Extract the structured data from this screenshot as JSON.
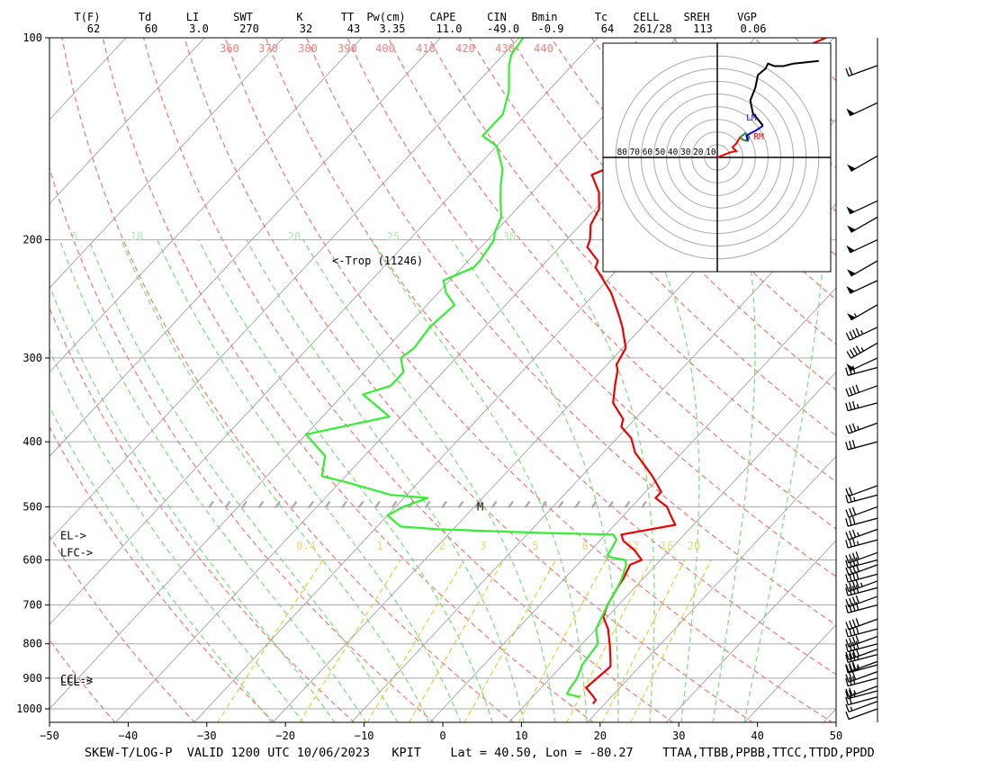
{
  "header": {
    "columns": [
      {
        "label": "T(F)",
        "value": "62"
      },
      {
        "label": "Td",
        "value": "60"
      },
      {
        "label": "LI",
        "value": "3.0"
      },
      {
        "label": "SWT",
        "value": "270"
      },
      {
        "label": "K",
        "value": "32"
      },
      {
        "label": "TT",
        "value": "43"
      },
      {
        "label": "Pw(cm)",
        "value": "3.35"
      },
      {
        "label": "CAPE",
        "value": "11.0"
      },
      {
        "label": "CIN",
        "value": "-49.0"
      },
      {
        "label": "Bmin",
        "value": "-0.9"
      },
      {
        "label": "Tc",
        "value": "64"
      },
      {
        "label": "CELL",
        "value": "261/28"
      },
      {
        "label": "SREH",
        "value": "113"
      },
      {
        "label": "VGP",
        "value": "0.06"
      }
    ]
  },
  "footer": {
    "text": "SKEW-T/LOG-P  VALID 1200 UTC 10/06/2023   KPIT    Lat = 40.50, Lon = -80.27    TTAA,TTBB,PPBB,TTCC,TTDD,PPDD"
  },
  "colors": {
    "temperature": "#ee0000",
    "dewpoint": "#33ee33",
    "isotherm": "#999999",
    "dry_adiabat": "#f08080",
    "moist_adiabat": "#80e080",
    "mixing_ratio": "#e6d24a",
    "hodograph": "#000000",
    "storm_motion_lm": "#0000ff",
    "storm_motion_rm": "#ee0000",
    "parcel": "#c8a078",
    "el_hatch": "#aaaaaa"
  },
  "chart_data": {
    "type": "line",
    "xlabel": "",
    "ylabel": "",
    "xlim": [
      -50,
      50
    ],
    "ylim": [
      1050,
      100
    ],
    "y_scale": "log",
    "x_ticks": [
      "−50",
      "−40",
      "−30",
      "−20",
      "−10",
      "0",
      "10",
      "20",
      "30",
      "40",
      "50"
    ],
    "y_ticks": [
      "100",
      "200",
      "300",
      "400",
      "500",
      "600",
      "700",
      "800",
      "900",
      "1000"
    ],
    "isobars": [
      100,
      200,
      300,
      400,
      500,
      600,
      700,
      800,
      900,
      1000
    ],
    "dry_adiabat_labels": [
      "360",
      "370",
      "380",
      "390",
      "400",
      "410",
      "420",
      "430",
      "440"
    ],
    "moist_adiabat_labels": [
      "5",
      "10",
      "20",
      "25",
      "30"
    ],
    "mixing_ratio_labels": [
      "0.4",
      "1",
      "2",
      "3",
      "5",
      "8",
      "12",
      "16",
      "20"
    ],
    "series": [
      {
        "key": "temperature",
        "points": [
          [
            18.5,
            983
          ],
          [
            18.4,
            970
          ],
          [
            17.1,
            950
          ],
          [
            15.7,
            930
          ],
          [
            16.3,
            865
          ],
          [
            15.7,
            850
          ],
          [
            13.5,
            800
          ],
          [
            11.5,
            760
          ],
          [
            9.5,
            730
          ],
          [
            8.6,
            700
          ],
          [
            7.8,
            660
          ],
          [
            7.5,
            640
          ],
          [
            6.7,
            610
          ],
          [
            7.6,
            600
          ],
          [
            5.5,
            580
          ],
          [
            3.0,
            562
          ],
          [
            2.0,
            550
          ],
          [
            7.7,
            532
          ],
          [
            6.0,
            515
          ],
          [
            4.5,
            500
          ],
          [
            2.0,
            485
          ],
          [
            2.0,
            475
          ],
          [
            -1.0,
            450
          ],
          [
            -6.0,
            415
          ],
          [
            -8.2,
            395
          ],
          [
            -10.8,
            380
          ],
          [
            -11.5,
            370
          ],
          [
            -14.7,
            350
          ],
          [
            -16.5,
            330
          ],
          [
            -18.0,
            313
          ],
          [
            -18.8,
            307
          ],
          [
            -19.6,
            290
          ],
          [
            -22.5,
            270
          ],
          [
            -24.2,
            260
          ],
          [
            -28.0,
            240
          ],
          [
            -33.0,
            220
          ],
          [
            -33.5,
            215
          ],
          [
            -36.5,
            205
          ],
          [
            -37.0,
            200
          ],
          [
            -38.7,
            190
          ],
          [
            -39.5,
            180
          ],
          [
            -41.5,
            170
          ],
          [
            -44.5,
            160
          ],
          [
            -41.0,
            150
          ],
          [
            -37.0,
            140
          ],
          [
            -36.0,
            132
          ],
          [
            -36.0,
            127
          ],
          [
            -34.0,
            120
          ],
          [
            -34.0,
            110
          ],
          [
            -34.0,
            106
          ],
          [
            -31.0,
            100
          ]
        ]
      },
      {
        "key": "dewpoint",
        "points": [
          [
            16.0,
            960
          ],
          [
            14.0,
            950
          ],
          [
            13.7,
            930
          ],
          [
            13.5,
            905
          ],
          [
            13.0,
            880
          ],
          [
            12.5,
            860
          ],
          [
            12.0,
            800
          ],
          [
            10.0,
            760
          ],
          [
            8.6,
            700
          ],
          [
            7.8,
            660
          ],
          [
            7.3,
            640
          ],
          [
            6.2,
            610
          ],
          [
            5.5,
            600
          ],
          [
            3.5,
            595
          ],
          [
            2.7,
            591
          ],
          [
            2.5,
            580
          ],
          [
            2.0,
            560
          ],
          [
            1.0,
            550
          ],
          [
            -8.0,
            547
          ],
          [
            -22.0,
            540
          ],
          [
            -27.0,
            535
          ],
          [
            -30.0,
            515
          ],
          [
            -29.0,
            500
          ],
          [
            -27.0,
            485
          ],
          [
            -32.0,
            480
          ],
          [
            -39.0,
            460
          ],
          [
            -43.0,
            450
          ],
          [
            -45.0,
            420
          ],
          [
            -50.0,
            390
          ],
          [
            -41.5,
            367
          ],
          [
            -43.0,
            360
          ],
          [
            -47.5,
            340
          ],
          [
            -45.0,
            330
          ],
          [
            -45.0,
            315
          ],
          [
            -47.0,
            300
          ],
          [
            -46.5,
            290
          ],
          [
            -47.0,
            270
          ],
          [
            -46.5,
            250
          ],
          [
            -49.0,
            240
          ],
          [
            -50.8,
            230
          ],
          [
            -48.5,
            220
          ],
          [
            -48.5,
            215
          ],
          [
            -49.2,
            200
          ],
          [
            -50.0,
            195
          ],
          [
            -51.0,
            185
          ],
          [
            -53.0,
            175
          ],
          [
            -55.0,
            165
          ],
          [
            -56.5,
            157
          ],
          [
            -60.0,
            145
          ],
          [
            -63.0,
            140
          ],
          [
            -63.0,
            130
          ],
          [
            -65.0,
            120
          ],
          [
            -68.0,
            110
          ],
          [
            -69.0,
            106
          ],
          [
            -69.5,
            100
          ]
        ]
      }
    ],
    "annotations": [
      {
        "key": "tropopause",
        "text": "<-Trop (11246)",
        "pressure": 215
      },
      {
        "key": "el",
        "text": "EL->",
        "pressure": 552
      },
      {
        "key": "lfc",
        "text": "LFC->",
        "pressure": 585
      },
      {
        "key": "ccl",
        "text": "CCL->",
        "pressure": 903
      },
      {
        "key": "lcl",
        "text": "LCL->",
        "pressure": 912
      },
      {
        "key": "mpoint",
        "text": "M",
        "pressure": 510,
        "temperature": -6.0
      }
    ],
    "hodograph": {
      "ring_labels": [
        "80",
        "70",
        "60",
        "50",
        "40",
        "30",
        "20",
        "10"
      ],
      "ring_step_kt": 10,
      "lm_label": "LM",
      "rm_label": "RM",
      "trace_red": [
        [
          0,
          0
        ],
        [
          10,
          4
        ],
        [
          15,
          5
        ],
        [
          12,
          8
        ],
        [
          15,
          11
        ],
        [
          18,
          16
        ]
      ],
      "trace_green": [
        [
          18,
          16
        ],
        [
          22,
          19
        ],
        [
          25,
          16
        ],
        [
          24,
          13
        ],
        [
          20,
          14
        ],
        [
          18,
          16
        ]
      ],
      "trace_blue": [
        [
          24,
          13
        ],
        [
          23,
          17
        ],
        [
          26,
          19
        ],
        [
          30,
          21
        ],
        [
          36,
          25
        ]
      ],
      "trace_black": [
        [
          36,
          25
        ],
        [
          28,
          35
        ],
        [
          26,
          45
        ],
        [
          30,
          55
        ],
        [
          32,
          65
        ],
        [
          38,
          70
        ],
        [
          40,
          74
        ],
        [
          45,
          72
        ],
        [
          52,
          72
        ],
        [
          60,
          74
        ],
        [
          70,
          75
        ],
        [
          80,
          76
        ]
      ],
      "lm": [
        20,
        25
      ],
      "rm": [
        30,
        10
      ]
    },
    "wind_barbs": [
      {
        "p": 1000,
        "speed_kt": 10,
        "dir": 250
      },
      {
        "p": 975,
        "speed_kt": 15,
        "dir": 250
      },
      {
        "p": 960,
        "speed_kt": 20,
        "dir": 255
      },
      {
        "p": 940,
        "speed_kt": 25,
        "dir": 255
      },
      {
        "p": 925,
        "speed_kt": 25,
        "dir": 250
      },
      {
        "p": 900,
        "speed_kt": 30,
        "dir": 255
      },
      {
        "p": 880,
        "speed_kt": 30,
        "dir": 250
      },
      {
        "p": 860,
        "speed_kt": 35,
        "dir": 255
      },
      {
        "p": 850,
        "speed_kt": 35,
        "dir": 250
      },
      {
        "p": 830,
        "speed_kt": 35,
        "dir": 255
      },
      {
        "p": 815,
        "speed_kt": 40,
        "dir": 250
      },
      {
        "p": 800,
        "speed_kt": 40,
        "dir": 255
      },
      {
        "p": 780,
        "speed_kt": 40,
        "dir": 250
      },
      {
        "p": 760,
        "speed_kt": 40,
        "dir": 255
      },
      {
        "p": 735,
        "speed_kt": 40,
        "dir": 250
      },
      {
        "p": 700,
        "speed_kt": 40,
        "dir": 255
      },
      {
        "p": 680,
        "speed_kt": 40,
        "dir": 250
      },
      {
        "p": 660,
        "speed_kt": 40,
        "dir": 255
      },
      {
        "p": 645,
        "speed_kt": 45,
        "dir": 250
      },
      {
        "p": 630,
        "speed_kt": 40,
        "dir": 255
      },
      {
        "p": 610,
        "speed_kt": 40,
        "dir": 250
      },
      {
        "p": 600,
        "speed_kt": 40,
        "dir": 255
      },
      {
        "p": 585,
        "speed_kt": 40,
        "dir": 250
      },
      {
        "p": 560,
        "speed_kt": 35,
        "dir": 255
      },
      {
        "p": 540,
        "speed_kt": 35,
        "dir": 250
      },
      {
        "p": 520,
        "speed_kt": 30,
        "dir": 255
      },
      {
        "p": 500,
        "speed_kt": 30,
        "dir": 250
      },
      {
        "p": 480,
        "speed_kt": 25,
        "dir": 255
      },
      {
        "p": 465,
        "speed_kt": 20,
        "dir": 250
      },
      {
        "p": 400,
        "speed_kt": 30,
        "dir": 255
      },
      {
        "p": 375,
        "speed_kt": 35,
        "dir": 250
      },
      {
        "p": 350,
        "speed_kt": 35,
        "dir": 255
      },
      {
        "p": 330,
        "speed_kt": 40,
        "dir": 250
      },
      {
        "p": 310,
        "speed_kt": 30,
        "dir": 255
      },
      {
        "p": 300,
        "speed_kt": 50,
        "dir": 245
      },
      {
        "p": 285,
        "speed_kt": 45,
        "dir": 240
      },
      {
        "p": 270,
        "speed_kt": 45,
        "dir": 245
      },
      {
        "p": 250,
        "speed_kt": 55,
        "dir": 240
      },
      {
        "p": 230,
        "speed_kt": 50,
        "dir": 245
      },
      {
        "p": 215,
        "speed_kt": 50,
        "dir": 240
      },
      {
        "p": 200,
        "speed_kt": 50,
        "dir": 245
      },
      {
        "p": 185,
        "speed_kt": 50,
        "dir": 240
      },
      {
        "p": 175,
        "speed_kt": 50,
        "dir": 245
      },
      {
        "p": 150,
        "speed_kt": 50,
        "dir": 240
      },
      {
        "p": 125,
        "speed_kt": 50,
        "dir": 245
      },
      {
        "p": 110,
        "speed_kt": 20,
        "dir": 250
      }
    ]
  }
}
